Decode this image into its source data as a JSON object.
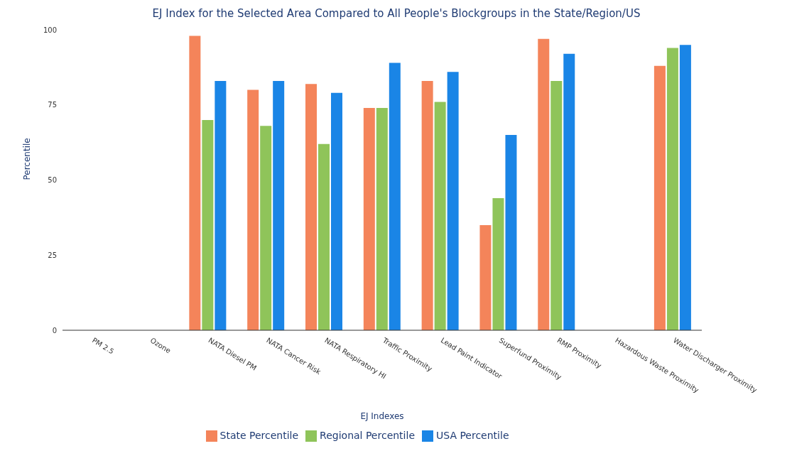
{
  "chart_data": {
    "type": "bar",
    "title": "EJ Index for the Selected Area Compared to All People's Blockgroups in the State/Region/US",
    "xlabel": "EJ Indexes",
    "ylabel": "Percentile",
    "categories": [
      "PM 2.5",
      "Ozone",
      "NATA Diesel PM",
      "NATA Cancer Risk",
      "NATA Respiratory HI",
      "Traffic Proximity",
      "Lead Paint Indicator",
      "Superfund Proximity",
      "RMP Proximity",
      "Hazardous Waste Proximity",
      "Water Discharger Proximity"
    ],
    "series": [
      {
        "name": "State Percentile",
        "color": "#f4845a",
        "values": [
          null,
          null,
          98,
          80,
          82,
          74,
          83,
          35,
          97,
          null,
          88
        ]
      },
      {
        "name": "Regional Percentile",
        "color": "#8fc45a",
        "values": [
          null,
          null,
          70,
          68,
          62,
          74,
          76,
          44,
          83,
          null,
          94
        ]
      },
      {
        "name": "USA Percentile",
        "color": "#1a85e6",
        "values": [
          null,
          null,
          83,
          83,
          79,
          89,
          86,
          65,
          92,
          null,
          95
        ]
      }
    ],
    "ylim": [
      0,
      100
    ],
    "yticks": [
      0,
      25,
      50,
      75,
      100
    ],
    "grid": false,
    "legend": "bottom"
  }
}
